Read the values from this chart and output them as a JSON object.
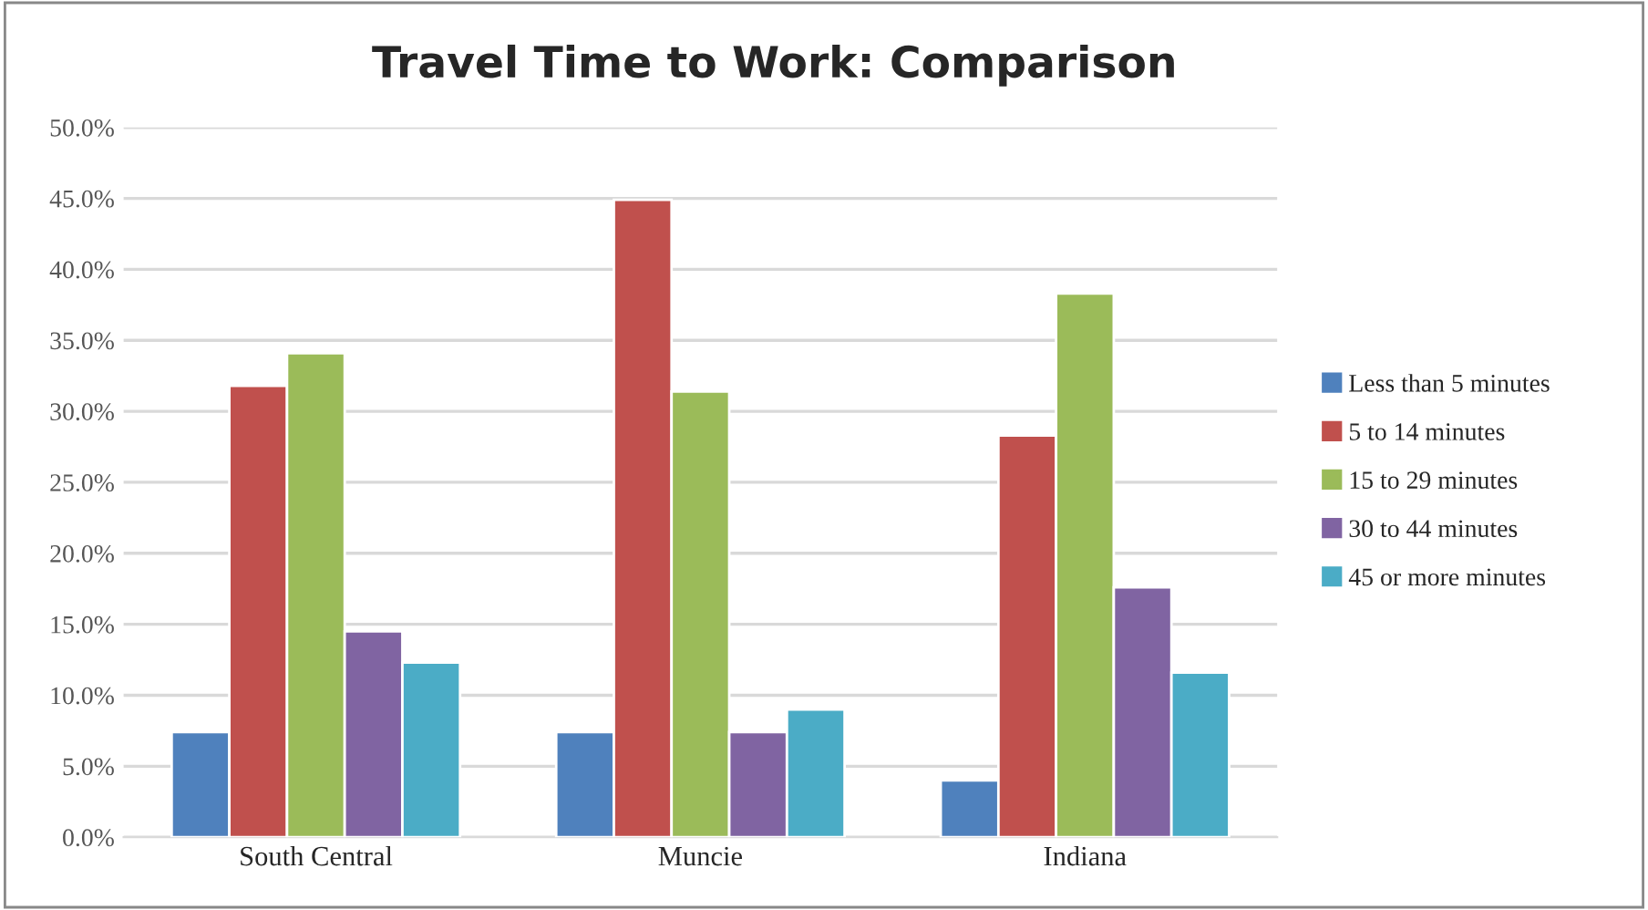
{
  "chart_data": {
    "type": "bar",
    "title": "Travel Time to Work: Comparison",
    "categories": [
      "South Central",
      "Muncie",
      "Indiana"
    ],
    "series": [
      {
        "name": "Less than 5 minutes",
        "color": "#4f81bd",
        "values": [
          7.4,
          7.4,
          4.0
        ]
      },
      {
        "name": "5 to 14 minutes",
        "color": "#c0504d",
        "values": [
          31.8,
          44.9,
          28.3
        ]
      },
      {
        "name": "15 to 29 minutes",
        "color": "#9bbb59",
        "values": [
          34.1,
          31.4,
          38.3
        ]
      },
      {
        "name": "30 to 44 minutes",
        "color": "#8064a2",
        "values": [
          14.5,
          7.4,
          17.6
        ]
      },
      {
        "name": "45 or more minutes",
        "color": "#4bacc6",
        "values": [
          12.3,
          9.0,
          11.6
        ]
      }
    ],
    "ylim": [
      0,
      50
    ],
    "yticks": [
      {
        "value": 0,
        "label": "0.0%"
      },
      {
        "value": 5,
        "label": "5.0%"
      },
      {
        "value": 10,
        "label": "10.0%"
      },
      {
        "value": 15,
        "label": "15.0%"
      },
      {
        "value": 20,
        "label": "20.0%"
      },
      {
        "value": 25,
        "label": "25.0%"
      },
      {
        "value": 30,
        "label": "30.0%"
      },
      {
        "value": 35,
        "label": "35.0%"
      },
      {
        "value": 40,
        "label": "40.0%"
      },
      {
        "value": 45,
        "label": "45.0%"
      },
      {
        "value": 50,
        "label": "50.0%"
      }
    ],
    "grid": "y",
    "legend": "right"
  }
}
